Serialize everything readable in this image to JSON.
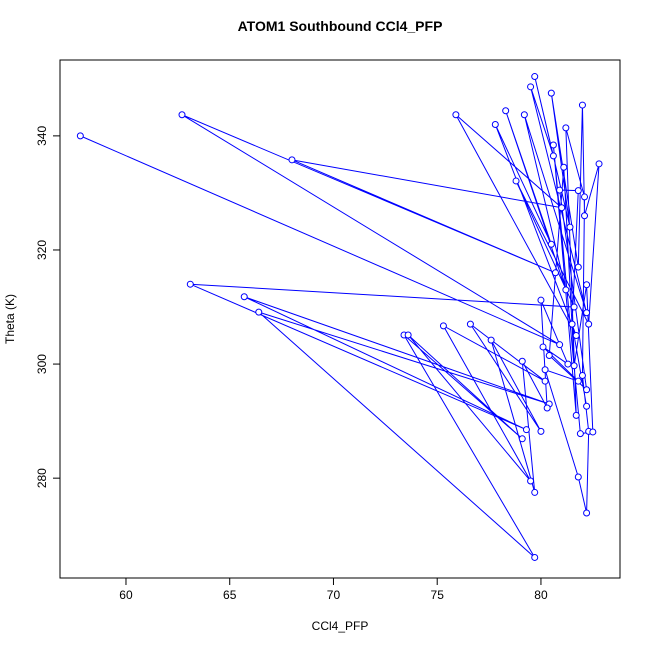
{
  "chart_data": {
    "type": "line",
    "title": "ATOM1 Southbound CCl4_PFP",
    "xlabel": "CCl4_PFP",
    "ylabel": "Theta (K)",
    "color": "#0000ff",
    "xlim": [
      56.82,
      83.81
    ],
    "ylim": [
      262.5,
      353.3
    ],
    "xticks": [
      60,
      65,
      70,
      75,
      80
    ],
    "yticks": [
      280,
      300,
      320,
      340
    ],
    "x": [
      57.8,
      80.9,
      62.7,
      80.7,
      68.0,
      81.0,
      75.9,
      81.7,
      77.8,
      80.5,
      78.3,
      81.2,
      79.2,
      82.2,
      79.5,
      80.6,
      79.7,
      81.4,
      80.5,
      81.8,
      82.0,
      82.1,
      82.8,
      82.3,
      78.8,
      81.6,
      63.1,
      79.3,
      65.7,
      80.4,
      66.4,
      79.7,
      73.4,
      79.1,
      73.6,
      79.5,
      75.3,
      80.2,
      76.6,
      80.0,
      77.6,
      79.7,
      79.1,
      80.3,
      80.0,
      81.3,
      80.1,
      81.8,
      80.2,
      81.8,
      82.2,
      82.3,
      82.0,
      82.1,
      81.2,
      81.7,
      80.6,
      81.9,
      82.5,
      82.2,
      81.6,
      81.1,
      80.4,
      82.2,
      80.9,
      81.8,
      81.5,
      82.2
    ],
    "values": [
      340,
      303.4,
      343.7,
      316,
      335.8,
      327.4,
      343.7,
      305,
      342,
      321,
      344.4,
      313,
      343.7,
      309,
      348.6,
      336.5,
      350.4,
      324,
      347.5,
      317,
      345.4,
      326,
      335.1,
      307,
      332.1,
      310,
      314.0,
      288.5,
      311.8,
      293,
      309.1,
      266.1,
      305.1,
      286.9,
      305.1,
      279.5,
      306.7,
      297,
      307,
      288.2,
      304.2,
      277.5,
      300.5,
      292.3,
      311.2,
      300,
      303,
      297,
      299,
      280.2,
      273.9,
      288.2,
      298,
      329.3,
      341.4,
      291,
      338.4,
      287.8,
      288.1,
      313.9,
      299.7,
      334.5,
      301.5,
      295.5,
      330.5,
      330.4,
      307,
      292.6
    ]
  }
}
